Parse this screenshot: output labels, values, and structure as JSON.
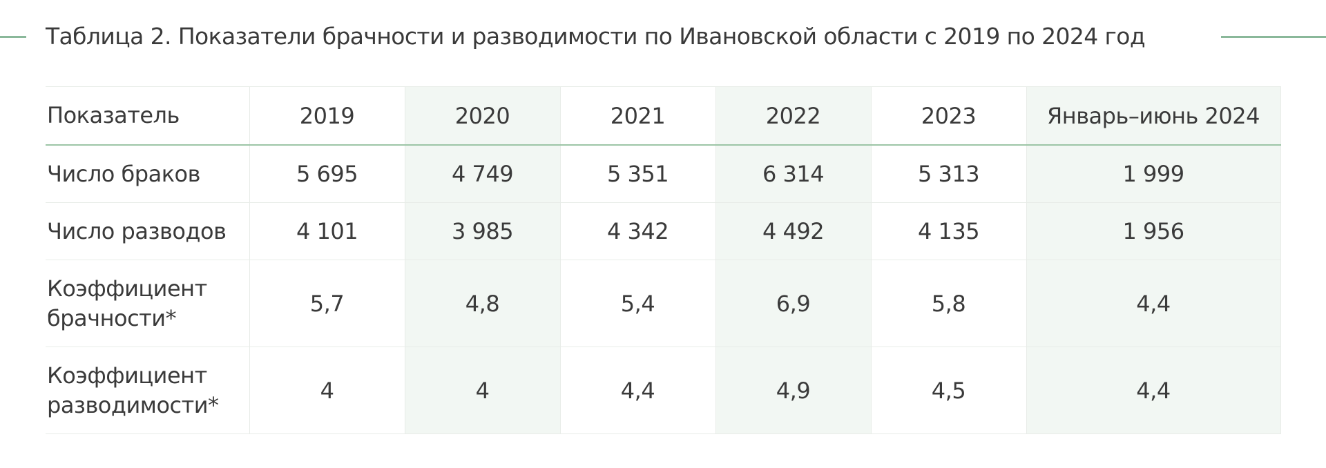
{
  "title": "Таблица 2. Показатели брачности и разводимости по Ивановской области с 2019 по 2024 год",
  "accent_color": "#8ab89a",
  "shade_color": "#f2f7f3",
  "table": {
    "headers": [
      "Показатель",
      "2019",
      "2020",
      "2021",
      "2022",
      "2023",
      "Январь–июнь 2024"
    ],
    "rows": [
      {
        "label": "Число браков",
        "values": [
          "5 695",
          "4 749",
          "5 351",
          "6 314",
          "5 313",
          "1 999"
        ]
      },
      {
        "label": "Число разводов",
        "values": [
          "4 101",
          "3 985",
          "4 342",
          "4 492",
          "4 135",
          "1 956"
        ]
      },
      {
        "label_line1": "Коэффициент",
        "label_line2": "брачности*",
        "values": [
          "5,7",
          "4,8",
          "5,4",
          "6,9",
          "5,8",
          "4,4"
        ]
      },
      {
        "label_line1": "Коэффициент",
        "label_line2": "разводимости*",
        "values": [
          "4",
          "4",
          "4,4",
          "4,9",
          "4,5",
          "4,4"
        ]
      }
    ]
  }
}
